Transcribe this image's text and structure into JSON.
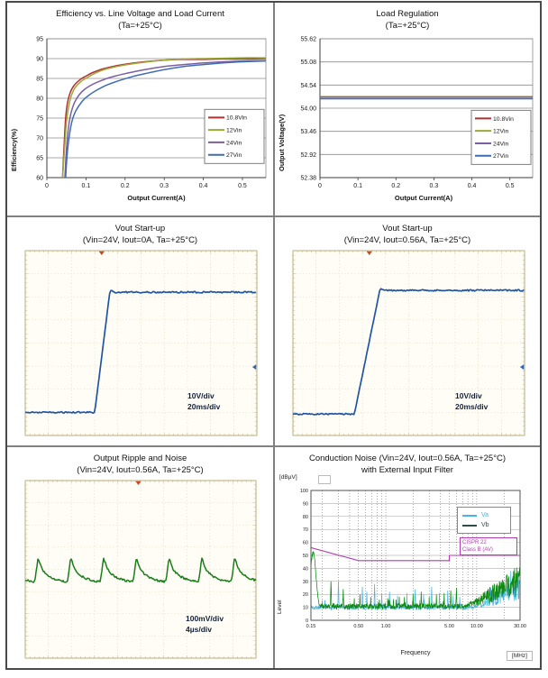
{
  "page": {
    "background": "#ffffff",
    "frame_border": "#4a4a4a",
    "panel_divider": "#808080"
  },
  "colors": {
    "series_10_8vin": "#b03030",
    "series_12vin": "#9ca838",
    "series_24vin": "#7b5fa5",
    "series_27vin": "#3e6cb5",
    "scope_blue": "#2055a4",
    "scope_green": "#178017",
    "va": "#45b4e6",
    "vb": "#0e8a10",
    "vb_legend_line": "#2e4d4d",
    "cispr": "#b43cb4",
    "annotation_text": "#13203a"
  },
  "chart_data": [
    {
      "type": "line",
      "title": "Efficiency vs. Line Voltage and Load Current",
      "subtitle": "(Ta=+25°C)",
      "xlabel": "Output Current(A)",
      "ylabel": "Efficiency(%)",
      "xlim": [
        0,
        0.56
      ],
      "ylim": [
        60,
        95
      ],
      "x_ticks": [
        "0",
        "0.1",
        "0.2",
        "0.3",
        "0.4",
        "0.5"
      ],
      "x_tick_values": [
        0,
        0.1,
        0.2,
        0.3,
        0.4,
        0.5
      ],
      "y_ticks": [
        "60",
        "65",
        "70",
        "75",
        "80",
        "85",
        "90",
        "95"
      ],
      "y_tick_values": [
        60,
        65,
        70,
        75,
        80,
        85,
        90,
        95
      ],
      "grid": "horizontal",
      "legend_position": "right-middle",
      "legend_top_value": 77.2,
      "series": [
        {
          "name": "10.8Vin",
          "color": "#b03030",
          "x": [
            0.04,
            0.044,
            0.048,
            0.053,
            0.06,
            0.07,
            0.085,
            0.1,
            0.12,
            0.15,
            0.2,
            0.25,
            0.3,
            0.35,
            0.4,
            0.45,
            0.5,
            0.56
          ],
          "y": [
            60,
            68,
            75,
            79,
            81.5,
            83.3,
            84.7,
            85.6,
            86.6,
            87.6,
            88.6,
            89.2,
            89.6,
            89.8,
            89.8,
            89.9,
            89.9,
            90.0
          ]
        },
        {
          "name": "12Vin",
          "color": "#9ca838",
          "x": [
            0.04,
            0.045,
            0.05,
            0.056,
            0.063,
            0.073,
            0.088,
            0.103,
            0.123,
            0.152,
            0.2,
            0.25,
            0.3,
            0.35,
            0.4,
            0.45,
            0.5,
            0.56
          ],
          "y": [
            60,
            67,
            74,
            78,
            80.8,
            82.8,
            84.3,
            85.2,
            86.3,
            87.4,
            88.4,
            89.1,
            89.6,
            89.9,
            90.0,
            90.1,
            90.2,
            90.2
          ]
        },
        {
          "name": "24Vin",
          "color": "#7b5fa5",
          "x": [
            0.046,
            0.05,
            0.055,
            0.061,
            0.07,
            0.082,
            0.097,
            0.115,
            0.135,
            0.16,
            0.2,
            0.25,
            0.3,
            0.35,
            0.4,
            0.45,
            0.5,
            0.56
          ],
          "y": [
            60,
            67,
            72.5,
            76,
            78.8,
            80.8,
            82.3,
            83.4,
            84.3,
            85.2,
            86.2,
            87.2,
            88.0,
            88.5,
            88.9,
            89.2,
            89.4,
            89.5
          ]
        },
        {
          "name": "27Vin",
          "color": "#3e6cb5",
          "x": [
            0.048,
            0.052,
            0.058,
            0.065,
            0.075,
            0.09,
            0.105,
            0.125,
            0.15,
            0.18,
            0.22,
            0.26,
            0.3,
            0.35,
            0.4,
            0.45,
            0.5,
            0.56
          ],
          "y": [
            60,
            66,
            71,
            74.5,
            77,
            79.2,
            80.6,
            81.9,
            83.2,
            84.3,
            85.5,
            86.4,
            87.2,
            88.0,
            88.5,
            88.9,
            89.2,
            89.4
          ]
        }
      ]
    },
    {
      "type": "line",
      "title": "Load Regulation",
      "subtitle": "(Ta=+25°C)",
      "xlabel": "Output Current(A)",
      "ylabel": "Output Voltage(V)",
      "xlim": [
        0,
        0.56
      ],
      "ylim": [
        52.38,
        55.62
      ],
      "x_ticks": [
        "0",
        "0.1",
        "0.2",
        "0.3",
        "0.4",
        "0.5"
      ],
      "x_tick_values": [
        0,
        0.1,
        0.2,
        0.3,
        0.4,
        0.5
      ],
      "y_ticks": [
        "52.38",
        "52.92",
        "53.46",
        "54.00",
        "54.54",
        "55.08",
        "55.62"
      ],
      "y_tick_values": [
        52.38,
        52.92,
        53.46,
        54.0,
        54.54,
        55.08,
        55.62
      ],
      "grid": "horizontal",
      "legend_position": "right-lower",
      "legend_top_value": 53.95,
      "series": [
        {
          "name": "10.8Vin",
          "color": "#b03030",
          "x": [
            0,
            0.56
          ],
          "y": [
            54.27,
            54.27
          ]
        },
        {
          "name": "12Vin",
          "color": "#9ca838",
          "x": [
            0,
            0.56
          ],
          "y": [
            54.265,
            54.265
          ]
        },
        {
          "name": "24Vin",
          "color": "#7b5fa5",
          "x": [
            0,
            0.56
          ],
          "y": [
            54.26,
            54.26
          ]
        },
        {
          "name": "27Vin",
          "color": "#3e6cb5",
          "x": [
            0,
            0.56
          ],
          "y": [
            54.22,
            54.22
          ]
        }
      ]
    },
    {
      "type": "scope-step",
      "title": "Vout Start-up",
      "subtitle": "(Vin=24V, Iout=0A, Ta=+25°C)",
      "annotation": [
        "10V/div",
        "20ms/div"
      ],
      "trace_color": "#2055a4",
      "low_frac": 0.875,
      "high_frac": 0.225,
      "rise_start_frac": 0.3,
      "rise_end_frac": 0.365,
      "trigger_frac": 0.33,
      "right_marker_frac": 0.63
    },
    {
      "type": "scope-step",
      "title": "Vout Start-up",
      "subtitle": "(Vin=24V, Iout=0.56A, Ta=+25°C)",
      "annotation": [
        "10V/div",
        "20ms/div"
      ],
      "trace_color": "#2055a4",
      "low_frac": 0.885,
      "high_frac": 0.215,
      "rise_start_frac": 0.265,
      "rise_end_frac": 0.375,
      "trigger_frac": 0.33,
      "right_marker_frac": 0.63
    },
    {
      "type": "scope-ripple",
      "title": "Output Ripple and Noise",
      "subtitle": "(Vin=24V, Iout=0.56A, Ta=+25°C)",
      "annotation": [
        "100mV/div",
        "4µs/div"
      ],
      "trace_color": "#178017",
      "base_frac": 0.575,
      "peak_frac": 0.435,
      "period_frac": 0.142,
      "first_peak_frac": 0.055,
      "trigger_frac": 0.49
    },
    {
      "type": "line",
      "title": "Conduction Noise (Vin=24V, Iout=0.56A, Ta=+25°C)",
      "subtitle": "with External Input Filter",
      "xlabel": "Frequency",
      "x_unit": "[MHz]",
      "ylabel": "Level",
      "y_unit": "[dBµV]",
      "x_scale": "log",
      "xlim": [
        0.15,
        30
      ],
      "ylim": [
        0,
        100
      ],
      "x_ticks": [
        "0.15",
        "0.50",
        "1.00",
        "5.00",
        "10.00",
        "30.00"
      ],
      "x_tick_values": [
        0.15,
        0.5,
        1,
        5,
        10,
        30
      ],
      "minor_x_gridlines": [
        0.2,
        0.3,
        0.4,
        0.6,
        0.7,
        0.8,
        0.9,
        2,
        3,
        4,
        6,
        7,
        8,
        9,
        20
      ],
      "y_tick_step": 10,
      "legend": [
        {
          "name": "Va",
          "color": "#45b4e6"
        },
        {
          "name": "Vb",
          "color": "#2e4d4d"
        }
      ],
      "limit": {
        "label": [
          "CISPR 22",
          "Class B (AV)"
        ],
        "color": "#b43cb4",
        "points": [
          [
            0.15,
            56
          ],
          [
            0.5,
            46
          ],
          [
            5,
            46
          ],
          [
            5,
            50
          ],
          [
            30,
            50
          ]
        ]
      },
      "baseline_dbuv": 11,
      "startup_peak": {
        "freq": 0.16,
        "level": 51
      },
      "highband": {
        "start_mhz": 6,
        "max_level": 45
      },
      "va_peaks": [
        [
          0.3,
          30
        ],
        [
          0.55,
          26
        ],
        [
          0.62,
          22
        ],
        [
          0.75,
          28
        ],
        [
          0.9,
          21
        ],
        [
          1.1,
          22
        ],
        [
          1.35,
          19
        ],
        [
          1.7,
          21
        ],
        [
          2.1,
          24
        ],
        [
          2.6,
          20
        ],
        [
          3.2,
          26
        ],
        [
          3.9,
          21
        ],
        [
          4.8,
          23
        ],
        [
          5.5,
          19
        ],
        [
          6.5,
          18
        ]
      ],
      "vb_peaks": [
        [
          0.25,
          30
        ],
        [
          0.34,
          24
        ],
        [
          0.45,
          17
        ],
        [
          0.52,
          20
        ],
        [
          0.68,
          18
        ],
        [
          0.85,
          16
        ],
        [
          1.05,
          17
        ],
        [
          1.3,
          16
        ],
        [
          1.6,
          18
        ],
        [
          2.0,
          20
        ],
        [
          2.45,
          22
        ],
        [
          3.0,
          18
        ],
        [
          3.6,
          20
        ],
        [
          4.4,
          21
        ],
        [
          5.2,
          23
        ],
        [
          6.0,
          25
        ]
      ]
    }
  ]
}
